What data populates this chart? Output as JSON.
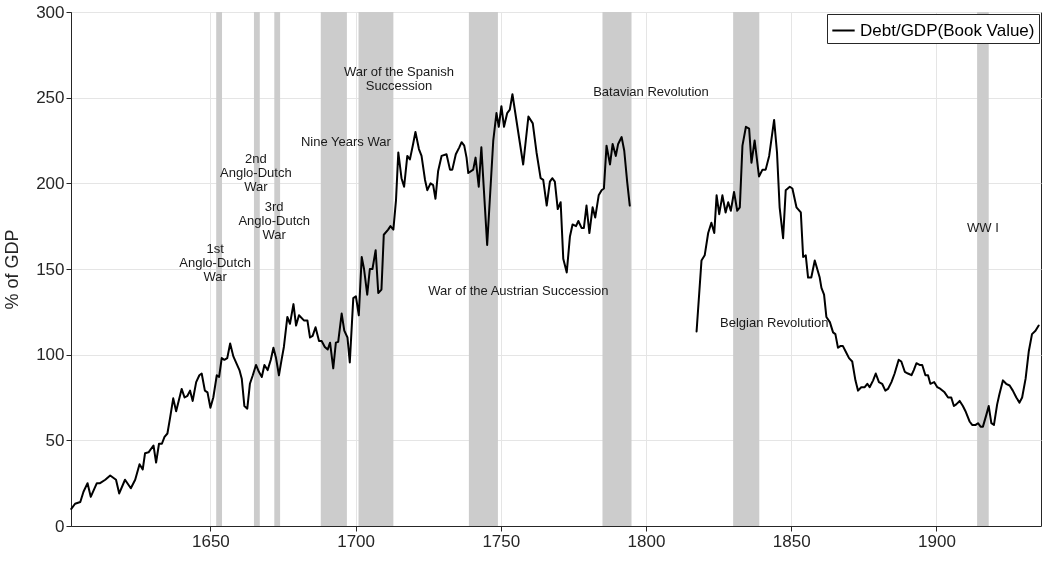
{
  "chart_data": {
    "type": "line",
    "ylabel": "% of GDP",
    "xlim": [
      1602,
      1936
    ],
    "ylim": [
      0,
      300
    ],
    "xticks": [
      1650,
      1700,
      1750,
      1800,
      1850,
      1900
    ],
    "yticks": [
      0,
      50,
      100,
      150,
      200,
      250,
      300
    ],
    "grid": true,
    "legend": "top right",
    "line_style": "solid",
    "marker": "none",
    "x": [
      1602.1,
      1603.4,
      1605.2,
      1606.3,
      1607.7,
      1608.8,
      1610.9,
      1612.0,
      1613.8,
      1615.5,
      1617.5,
      1618.6,
      1620.6,
      1622.6,
      1624.1,
      1625.6,
      1626.7,
      1627.5,
      1628.7,
      1630.4,
      1631.3,
      1632.3,
      1633.3,
      1634.2,
      1635.2,
      1636.1,
      1637.2,
      1638.2,
      1640.1,
      1641.1,
      1642.1,
      1643.0,
      1643.9,
      1645.1,
      1646.2,
      1647.0,
      1648.1,
      1649.0,
      1650.0,
      1651.0,
      1652.2,
      1653.0,
      1653.9,
      1654.8,
      1655.8,
      1656.8,
      1657.9,
      1660.0,
      1660.8,
      1661.7,
      1662.7,
      1663.6,
      1664.6,
      1665.7,
      1666.7,
      1667.7,
      1668.6,
      1669.7,
      1670.8,
      1671.7,
      1672.6,
      1673.6,
      1674.5,
      1675.3,
      1676.5,
      1677.4,
      1678.6,
      1679.5,
      1680.5,
      1682.2,
      1683.4,
      1684.3,
      1685.2,
      1686.2,
      1687.4,
      1688.3,
      1689.4,
      1690.4,
      1691.2,
      1692.3,
      1693.2,
      1694.0,
      1695.2,
      1696.1,
      1697.2,
      1698.0,
      1699.2,
      1700.1,
      1701.1,
      1702.1,
      1702.9,
      1704.0,
      1704.9,
      1705.8,
      1706.9,
      1707.8,
      1708.9,
      1709.7,
      1711.2,
      1712.0,
      1713.0,
      1713.9,
      1714.7,
      1715.8,
      1716.7,
      1717.8,
      1718.7,
      1719.8,
      1720.6,
      1721.8,
      1722.7,
      1723.9,
      1724.7,
      1725.8,
      1726.7,
      1727.5,
      1728.4,
      1729.6,
      1731.3,
      1732.5,
      1733.3,
      1734.5,
      1735.7,
      1736.5,
      1737.4,
      1738.2,
      1738.8,
      1740.5,
      1741.3,
      1742.4,
      1743.3,
      1745.3,
      1747.4,
      1748.5,
      1749.3,
      1750.2,
      1751.1,
      1752.2,
      1753.1,
      1754.0,
      1757.7,
      1759.5,
      1761.0,
      1762.3,
      1763.7,
      1764.6,
      1765.8,
      1766.9,
      1767.7,
      1768.6,
      1769.6,
      1770.6,
      1771.5,
      1772.7,
      1773.8,
      1774.7,
      1775.9,
      1776.7,
      1777.8,
      1778.6,
      1779.5,
      1780.5,
      1781.6,
      1782.5,
      1783.7,
      1784.7,
      1785.5,
      1786.4,
      1787.6,
      1788.5,
      1789.6,
      1790.4,
      1791.6,
      1792.5,
      1793.5,
      1794.4,
      1805,
      1817.4,
      1819.1,
      1820.2,
      1821.4,
      1822.5,
      1823.5,
      1824.3,
      1825.2,
      1826.3,
      1827.4,
      1828.3,
      1829.2,
      1830.3,
      1831.4,
      1832.3,
      1833.2,
      1834.4,
      1835.5,
      1836.3,
      1837.4,
      1838.9,
      1840.1,
      1841.2,
      1842.4,
      1844.1,
      1845.1,
      1846.0,
      1847.2,
      1848.1,
      1849.5,
      1850.4,
      1851.8,
      1853.3,
      1854.1,
      1855.0,
      1855.8,
      1856.9,
      1858.1,
      1859.8,
      1860.4,
      1861.3,
      1862.1,
      1863.3,
      1864.4,
      1865.2,
      1866.1,
      1866.9,
      1867.8,
      1869.0,
      1869.9,
      1871.0,
      1872.1,
      1873.0,
      1874.1,
      1875.3,
      1876.2,
      1877.0,
      1878.2,
      1879.1,
      1880.2,
      1881.3,
      1882.4,
      1883.3,
      1884.5,
      1885.6,
      1887.0,
      1887.9,
      1889.1,
      1890.2,
      1891.4,
      1892.2,
      1893.1,
      1894.2,
      1895.1,
      1896.2,
      1897.1,
      1897.9,
      1899.2,
      1900.3,
      1901.4,
      1902.8,
      1904.0,
      1905.1,
      1906.0,
      1906.8,
      1908.0,
      1909.1,
      1910.0,
      1911.4,
      1912.3,
      1913.5,
      1914.3,
      1915.2,
      1916.0,
      1917.2,
      1918.0,
      1918.9,
      1919.8,
      1920.9,
      1921.7,
      1922.9,
      1924.0,
      1925.2,
      1926.3,
      1927.5,
      1928.6,
      1929.5,
      1930.7,
      1931.8,
      1932.9,
      1934.1,
      1935.2
    ],
    "series": [
      {
        "name": "Debt/GDP(Book Value)",
        "color": "#000000",
        "values": [
          10,
          13,
          14,
          20,
          25,
          17,
          25,
          25,
          27,
          29.5,
          27,
          19,
          27,
          22,
          27,
          36,
          33,
          42.5,
          43,
          47,
          37,
          48,
          48,
          52,
          54,
          63,
          74.5,
          67,
          80,
          75,
          76,
          79,
          73,
          84,
          88,
          89,
          79,
          78,
          69,
          75,
          88,
          87,
          98,
          97,
          98,
          106.5,
          99,
          91,
          86,
          70,
          68.5,
          83,
          88,
          94,
          90,
          87,
          94,
          91,
          97,
          104,
          98,
          88,
          97,
          104.5,
          122,
          118,
          129.5,
          117,
          123,
          120,
          120,
          110,
          111,
          116,
          108,
          108,
          104.5,
          103,
          107,
          92,
          107,
          107.5,
          124,
          114,
          110,
          95.5,
          133,
          134,
          123,
          157,
          150,
          135,
          150,
          150,
          161,
          136,
          138,
          170,
          173,
          175,
          173,
          190,
          218,
          203,
          198,
          216,
          214,
          223,
          230,
          220,
          216,
          202,
          196,
          200,
          199,
          191,
          207,
          216,
          217,
          208,
          208,
          217,
          221,
          224,
          222,
          215,
          206,
          208,
          215,
          198,
          221,
          164,
          225,
          241,
          233,
          245,
          233,
          241,
          243,
          252,
          211,
          239,
          235,
          218,
          203,
          202,
          187,
          201,
          203,
          201,
          185,
          189,
          156,
          148,
          169,
          176,
          175,
          178,
          174,
          174,
          187,
          171,
          186,
          180,
          193,
          196,
          197,
          222,
          211,
          223,
          216,
          223,
          227,
          219,
          201,
          187,
          null,
          113.5,
          155,
          158,
          171,
          177,
          171,
          193,
          182,
          193,
          183,
          189,
          184,
          195,
          184,
          186,
          222,
          233,
          232,
          212,
          225,
          204,
          208,
          208,
          216,
          237,
          218,
          186,
          168,
          196,
          198,
          197,
          186,
          183,
          157,
          158,
          145,
          145,
          155,
          145,
          139,
          135,
          122,
          119,
          113,
          112,
          104,
          105,
          105,
          101,
          98,
          96,
          85,
          79,
          81,
          81,
          83,
          81,
          85,
          89,
          84,
          83,
          79,
          80,
          84,
          89,
          97,
          96,
          90,
          89,
          88,
          91,
          95,
          94,
          94,
          88,
          88,
          83,
          84,
          81,
          80,
          78,
          75,
          75,
          70,
          71,
          73,
          70,
          67,
          61,
          59,
          59,
          60,
          58,
          58,
          65,
          70,
          60,
          59,
          71,
          77,
          85,
          83,
          82,
          79,
          75,
          72,
          75,
          86,
          102,
          112,
          114,
          117
        ]
      }
    ],
    "bands": [
      {
        "axis": "x",
        "from": 1652,
        "to": 1654,
        "label": "1st Anglo-Dutch War",
        "color": "#cccccc"
      },
      {
        "axis": "x",
        "from": 1665,
        "to": 1667,
        "label": "2nd Anglo-Dutch War",
        "color": "#cccccc"
      },
      {
        "axis": "x",
        "from": 1672,
        "to": 1674,
        "label": "3rd Anglo-Dutch War",
        "color": "#cccccc"
      },
      {
        "axis": "x",
        "from": 1688,
        "to": 1697,
        "label": "Nine Years War",
        "color": "#cccccc"
      },
      {
        "axis": "x",
        "from": 1701,
        "to": 1713,
        "label": "War of the Spanish Succession",
        "color": "#cccccc"
      },
      {
        "axis": "x",
        "from": 1739,
        "to": 1749,
        "label": "War of the Austrian Succession",
        "color": "#cccccc"
      },
      {
        "axis": "x",
        "from": 1785,
        "to": 1795,
        "label": "Batavian Revolution",
        "color": "#cccccc"
      },
      {
        "axis": "x",
        "from": 1830,
        "to": 1839,
        "label": "Belgian Revolution",
        "color": "#cccccc"
      },
      {
        "axis": "x",
        "from": 1914,
        "to": 1918,
        "label": "WW I",
        "color": "#cccccc"
      }
    ]
  }
}
